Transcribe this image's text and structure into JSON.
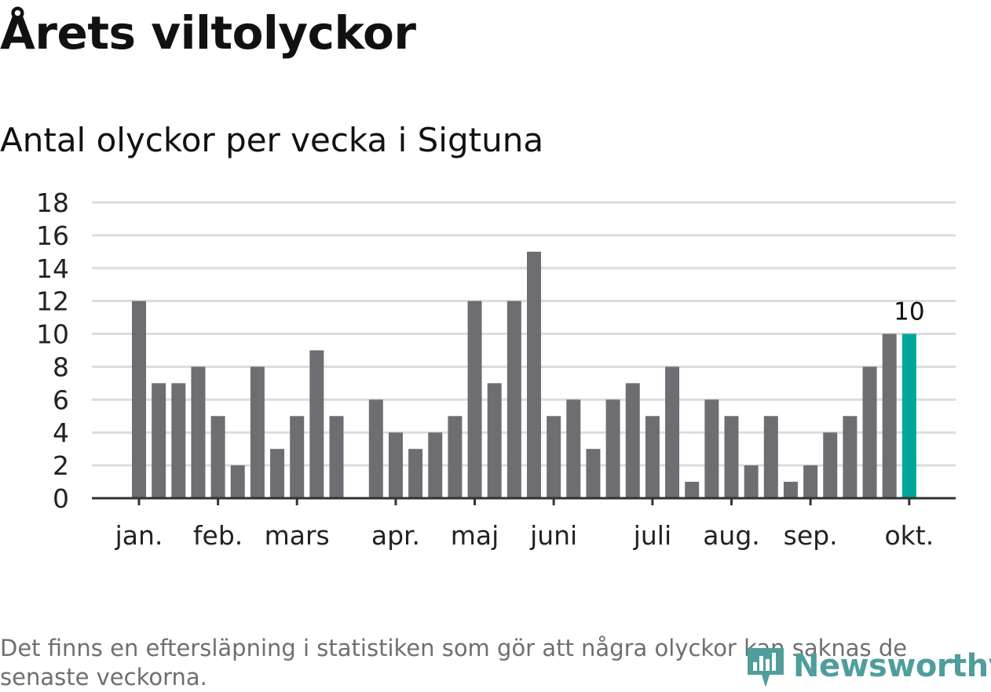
{
  "title": "Årets viltolyckor",
  "subtitle": "Antal olyckor per vecka i Sigtuna",
  "footnote": "Det finns en eftersläpning i statistiken som gör att några olyckor kan saknas de senaste veckorna.",
  "logo": {
    "text": "Newsworthy",
    "icon": "newsworthy-logo-icon"
  },
  "colors": {
    "bar": "#6e6d72",
    "highlight": "#00a699",
    "grid": "#dcdcdc",
    "axis": "#333333",
    "text": "#111111"
  },
  "chart_data": {
    "type": "bar",
    "title": "Antal olyckor per vecka i Sigtuna",
    "xlabel": "",
    "ylabel": "",
    "ylim": [
      0,
      18
    ],
    "yticks": [
      "0",
      "2",
      "4",
      "6",
      "8",
      "10",
      "12",
      "14",
      "16",
      "18"
    ],
    "values": [
      12,
      7,
      7,
      8,
      5,
      2,
      8,
      3,
      5,
      9,
      5,
      null,
      6,
      4,
      3,
      4,
      5,
      12,
      7,
      12,
      15,
      5,
      6,
      3,
      6,
      7,
      5,
      8,
      1,
      6,
      5,
      2,
      5,
      1,
      2,
      4,
      5,
      8,
      10,
      10
    ],
    "highlight_index": 39,
    "highlight_label": "10",
    "month_ticks": [
      {
        "label": "jan.",
        "index": 0
      },
      {
        "label": "feb.",
        "index": 4
      },
      {
        "label": "mars",
        "index": 8
      },
      {
        "label": "apr.",
        "index": 13
      },
      {
        "label": "maj",
        "index": 17
      },
      {
        "label": "juni",
        "index": 21
      },
      {
        "label": "juli",
        "index": 26
      },
      {
        "label": "aug.",
        "index": 30
      },
      {
        "label": "sep.",
        "index": 34
      },
      {
        "label": "okt.",
        "index": 39
      }
    ],
    "grid": true
  }
}
